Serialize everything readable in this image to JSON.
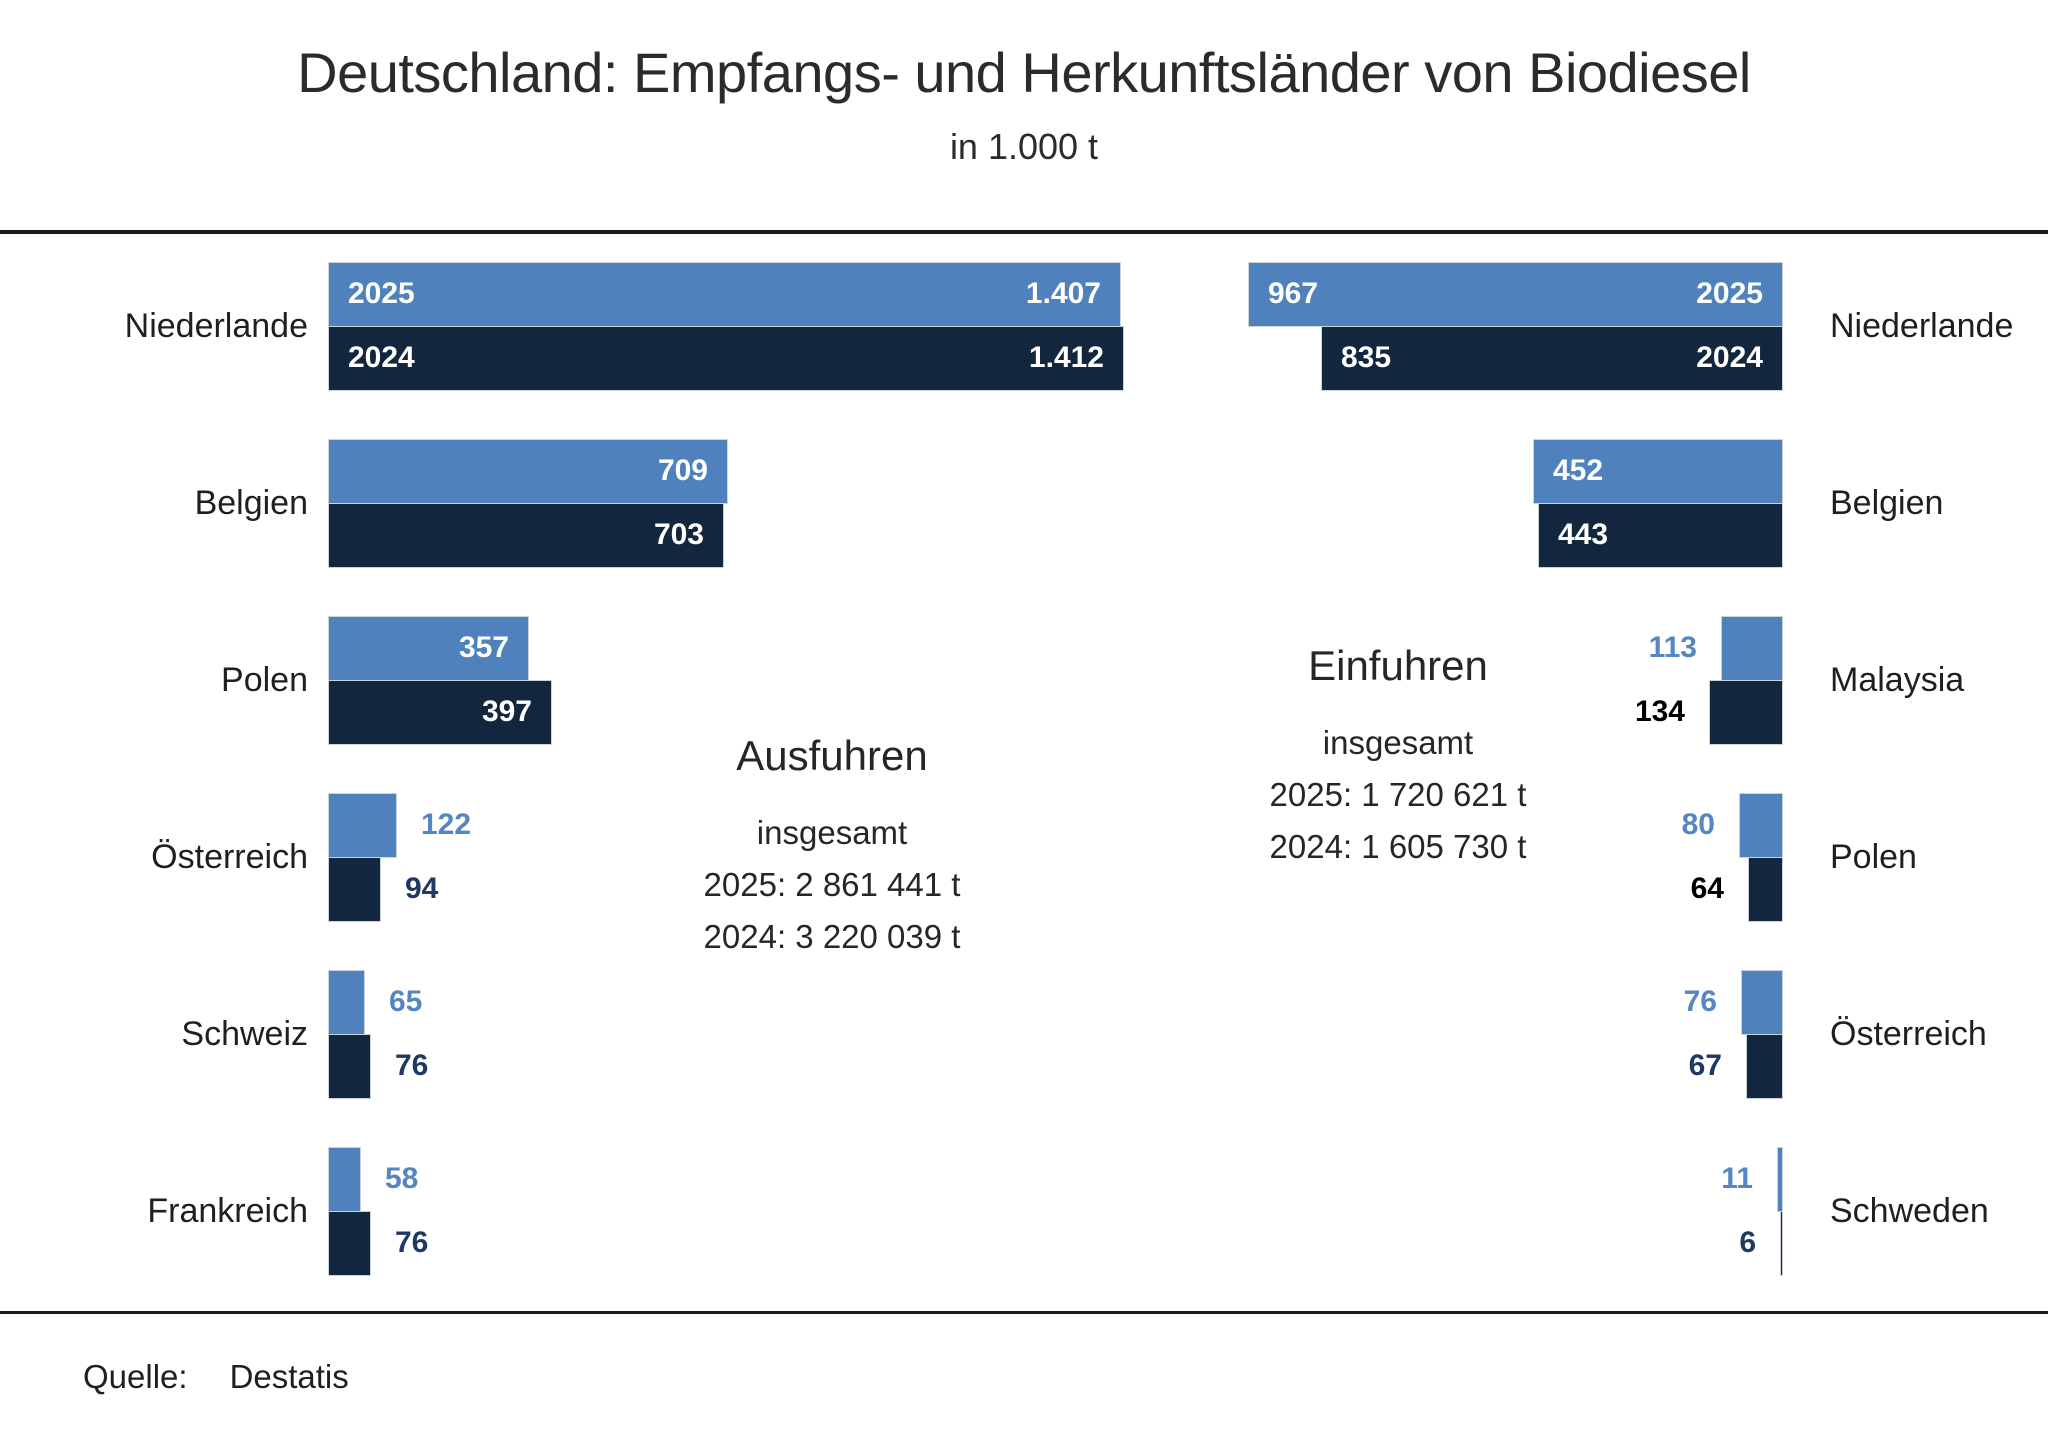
{
  "page": {
    "title": "Deutschland: Empfangs- und Herkunftsländer von Biodiesel",
    "subtitle": "in 1.000 t",
    "source_label": "Quelle:",
    "source_value": "Destatis"
  },
  "colors": {
    "bar_2025": "#4F81BD",
    "bar_2024": "#12263E",
    "inside_label": "#FFFFFF",
    "value_2025_text": "#5586C2",
    "value_2024_text_navy": "#1F3864",
    "value_2024_text_black": "#000000"
  },
  "chart_data": [
    {
      "id": "ausfuhren",
      "type": "bar",
      "orientation": "horizontal-bars-grow-right",
      "unit": "1.000 t",
      "years": [
        "2025",
        "2024"
      ],
      "center_text": {
        "title": "Ausfuhren",
        "subtitle": "insgesamt",
        "total_2025": "2025: 2 861 441 t",
        "total_2024": "2024: 3 220 039 t"
      },
      "rows": [
        {
          "country": "Niederlande",
          "v2025": 1407,
          "label2025": "1.407",
          "v2024": 1412,
          "label2024": "1.412",
          "inside": true,
          "show_years": true
        },
        {
          "country": "Belgien",
          "v2025": 709,
          "label2025": "709",
          "v2024": 703,
          "label2024": "703",
          "inside": true
        },
        {
          "country": "Polen",
          "v2025": 357,
          "label2025": "357",
          "v2024": 397,
          "label2024": "397",
          "inside": true
        },
        {
          "country": "Österreich",
          "v2025": 122,
          "label2025": "122",
          "v2024": 94,
          "label2024": "94",
          "inside": false,
          "label2024_color": "navy"
        },
        {
          "country": "Schweiz",
          "v2025": 65,
          "label2025": "65",
          "v2024": 76,
          "label2024": "76",
          "inside": false,
          "label2024_color": "navy"
        },
        {
          "country": "Frankreich",
          "v2025": 58,
          "label2025": "58",
          "v2024": 76,
          "label2024": "76",
          "inside": false,
          "label2024_color": "navy"
        }
      ]
    },
    {
      "id": "einfuhren",
      "type": "bar",
      "orientation": "horizontal-bars-grow-left",
      "unit": "1.000 t",
      "years": [
        "2025",
        "2024"
      ],
      "center_text": {
        "title": "Einfuhren",
        "subtitle": "insgesamt",
        "total_2025": "2025: 1 720 621 t",
        "total_2024": "2024: 1 605 730 t"
      },
      "rows": [
        {
          "country": "Niederlande",
          "v2025": 967,
          "label2025": "967",
          "v2024": 835,
          "label2024": "835",
          "inside": true,
          "show_years": true
        },
        {
          "country": "Belgien",
          "v2025": 452,
          "label2025": "452",
          "v2024": 443,
          "label2024": "443",
          "inside": true
        },
        {
          "country": "Malaysia",
          "v2025": 113,
          "label2025": "113",
          "v2024": 134,
          "label2024": "134",
          "inside": false,
          "label2024_color": "black"
        },
        {
          "country": "Polen",
          "v2025": 80,
          "label2025": "80",
          "v2024": 64,
          "label2024": "64",
          "inside": false,
          "label2024_color": "black"
        },
        {
          "country": "Österreich",
          "v2025": 76,
          "label2025": "76",
          "v2024": 67,
          "label2024": "67",
          "inside": false,
          "label2024_color": "navy"
        },
        {
          "country": "Schweden",
          "v2025": 11,
          "label2025": "11",
          "v2024": 6,
          "label2024": "6",
          "inside": false,
          "label2024_color": "navy"
        }
      ]
    }
  ]
}
